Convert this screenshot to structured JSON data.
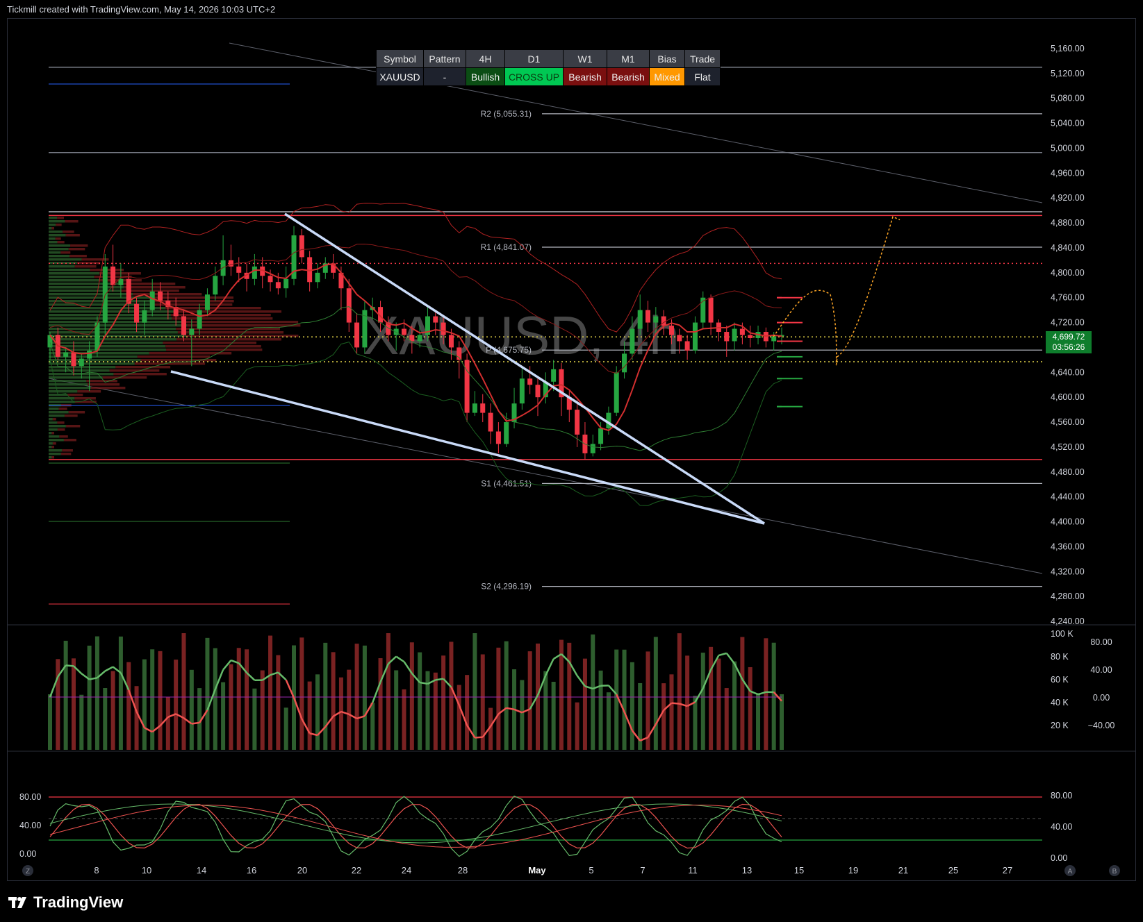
{
  "header": {
    "caption": "Tickmill created with TradingView.com, May 14, 2026 10:03 UTC+2"
  },
  "footer": {
    "brand": "TradingView",
    "logo_icon": "tradingview-logo-icon"
  },
  "watermark": "XAUUSD, 4h",
  "bias_table": {
    "headers": [
      "Symbol",
      "Pattern",
      "4H",
      "D1",
      "W1",
      "M1",
      "Bias",
      "Trade"
    ],
    "values": [
      "XAUUSD",
      "-",
      "Bullish",
      "CROSS UP",
      "Bearish",
      "Bearish",
      "Mixed",
      "Flat"
    ],
    "value_colors": [
      "#1e222d",
      "#1e222d",
      "#0b4d14",
      "#00c853",
      "#7a0f0f",
      "#7a0f0f",
      "#ff9800",
      "#1e222d"
    ]
  },
  "price_tag": {
    "price": "4,699.72",
    "countdown": "03:56:26"
  },
  "scale_buttons": {
    "left": "Z",
    "auto": "A",
    "log": "B"
  },
  "chart_data": {
    "type": "candlestick",
    "symbol": "XAUUSD",
    "timeframe": "4h",
    "price_axis": {
      "ticks": [
        "5,160.00",
        "5,120.00",
        "5,080.00",
        "5,040.00",
        "5,000.00",
        "4,960.00",
        "4,920.00",
        "4,880.00",
        "4,840.00",
        "4,800.00",
        "4,760.00",
        "4,720.00",
        "4,680.00",
        "4,640.00",
        "4,600.00",
        "4,560.00",
        "4,520.00",
        "4,480.00",
        "4,440.00",
        "4,400.00",
        "4,360.00",
        "4,320.00",
        "4,280.00",
        "4,240.00"
      ],
      "ylim": [
        4240,
        5160
      ]
    },
    "time_axis": {
      "ticks": [
        "8",
        "10",
        "14",
        "16",
        "20",
        "22",
        "24",
        "28",
        "May",
        "5",
        "7",
        "11",
        "13",
        "15",
        "19",
        "21",
        "25",
        "27"
      ]
    },
    "pivots": [
      {
        "label": "R2 (5,055.31)",
        "value": 5055.31
      },
      {
        "label": "R1 (4,841.07)",
        "value": 4841.07
      },
      {
        "label": "P (4,675.75)",
        "value": 4675.75
      },
      {
        "label": "S1 (4,461.51)",
        "value": 4461.51
      },
      {
        "label": "S2 (4,296.19)",
        "value": 4296.19
      }
    ],
    "horizontal_levels": [
      {
        "value": 5130,
        "color": "#787b86"
      },
      {
        "value": 4993,
        "color": "#787b86"
      },
      {
        "value": 4898,
        "color": "#b2b5be"
      },
      {
        "value": 4892,
        "color": "#f23645"
      },
      {
        "value": 4500,
        "color": "#f23645"
      },
      {
        "value": 4815,
        "color": "#f23645",
        "dotted": true
      },
      {
        "value": 4697,
        "color": "#e8d84a",
        "dotted": true
      },
      {
        "value": 4657,
        "color": "#e8d84a",
        "dotted": true
      }
    ],
    "last_price": 4699.72,
    "candles": [
      [
        4680,
        4700,
        4655,
        4705
      ],
      [
        4700,
        4665,
        4660,
        4712
      ],
      [
        4665,
        4672,
        4640,
        4680
      ],
      [
        4672,
        4650,
        4635,
        4690
      ],
      [
        4650,
        4662,
        4630,
        4670
      ],
      [
        4662,
        4675,
        4610,
        4690
      ],
      [
        4675,
        4720,
        4665,
        4730
      ],
      [
        4720,
        4810,
        4700,
        4830
      ],
      [
        4810,
        4780,
        4770,
        4845
      ],
      [
        4780,
        4790,
        4760,
        4815
      ],
      [
        4790,
        4750,
        4735,
        4800
      ],
      [
        4750,
        4720,
        4705,
        4760
      ],
      [
        4720,
        4740,
        4700,
        4755
      ],
      [
        4740,
        4770,
        4730,
        4790
      ],
      [
        4770,
        4755,
        4740,
        4785
      ],
      [
        4755,
        4745,
        4725,
        4770
      ],
      [
        4745,
        4730,
        4715,
        4760
      ],
      [
        4730,
        4700,
        4690,
        4740
      ],
      [
        4700,
        4710,
        4650,
        4725
      ],
      [
        4710,
        4740,
        4700,
        4750
      ],
      [
        4740,
        4765,
        4730,
        4775
      ],
      [
        4765,
        4795,
        4755,
        4810
      ],
      [
        4795,
        4820,
        4780,
        4860
      ],
      [
        4820,
        4810,
        4795,
        4845
      ],
      [
        4810,
        4800,
        4785,
        4825
      ],
      [
        4800,
        4790,
        4770,
        4815
      ],
      [
        4790,
        4810,
        4780,
        4830
      ],
      [
        4810,
        4795,
        4775,
        4825
      ],
      [
        4795,
        4785,
        4770,
        4805
      ],
      [
        4785,
        4775,
        4765,
        4800
      ],
      [
        4775,
        4790,
        4760,
        4810
      ],
      [
        4790,
        4860,
        4780,
        4875
      ],
      [
        4860,
        4825,
        4815,
        4870
      ],
      [
        4825,
        4785,
        4770,
        4835
      ],
      [
        4785,
        4800,
        4775,
        4815
      ],
      [
        4800,
        4815,
        4790,
        4825
      ],
      [
        4815,
        4800,
        4790,
        4830
      ],
      [
        4800,
        4775,
        4740,
        4810
      ],
      [
        4775,
        4720,
        4705,
        4790
      ],
      [
        4720,
        4680,
        4670,
        4735
      ],
      [
        4680,
        4740,
        4670,
        4755
      ],
      [
        4740,
        4745,
        4725,
        4760
      ],
      [
        4745,
        4720,
        4705,
        4755
      ],
      [
        4720,
        4700,
        4690,
        4730
      ],
      [
        4700,
        4710,
        4675,
        4720
      ],
      [
        4710,
        4700,
        4690,
        4725
      ],
      [
        4700,
        4690,
        4670,
        4715
      ],
      [
        4690,
        4700,
        4680,
        4715
      ],
      [
        4700,
        4730,
        4690,
        4745
      ],
      [
        4730,
        4720,
        4700,
        4740
      ],
      [
        4720,
        4700,
        4685,
        4730
      ],
      [
        4700,
        4680,
        4660,
        4710
      ],
      [
        4680,
        4660,
        4630,
        4690
      ],
      [
        4660,
        4575,
        4560,
        4670
      ],
      [
        4575,
        4590,
        4570,
        4610
      ],
      [
        4590,
        4575,
        4560,
        4605
      ],
      [
        4575,
        4545,
        4525,
        4590
      ],
      [
        4545,
        4525,
        4510,
        4560
      ],
      [
        4525,
        4560,
        4520,
        4575
      ],
      [
        4560,
        4590,
        4550,
        4615
      ],
      [
        4590,
        4630,
        4580,
        4650
      ],
      [
        4630,
        4620,
        4605,
        4650
      ],
      [
        4620,
        4600,
        4570,
        4630
      ],
      [
        4600,
        4625,
        4590,
        4640
      ],
      [
        4625,
        4645,
        4610,
        4660
      ],
      [
        4645,
        4600,
        4570,
        4655
      ],
      [
        4600,
        4580,
        4560,
        4610
      ],
      [
        4580,
        4540,
        4520,
        4595
      ],
      [
        4540,
        4510,
        4500,
        4560
      ],
      [
        4510,
        4525,
        4505,
        4540
      ],
      [
        4525,
        4550,
        4515,
        4560
      ],
      [
        4550,
        4575,
        4540,
        4585
      ],
      [
        4575,
        4640,
        4570,
        4650
      ],
      [
        4640,
        4670,
        4630,
        4690
      ],
      [
        4670,
        4710,
        4660,
        4730
      ],
      [
        4710,
        4740,
        4700,
        4765
      ],
      [
        4740,
        4720,
        4705,
        4755
      ],
      [
        4720,
        4730,
        4700,
        4745
      ],
      [
        4730,
        4715,
        4700,
        4740
      ],
      [
        4715,
        4700,
        4685,
        4725
      ],
      [
        4700,
        4690,
        4670,
        4710
      ],
      [
        4690,
        4675,
        4660,
        4700
      ],
      [
        4675,
        4720,
        4670,
        4730
      ],
      [
        4720,
        4760,
        4710,
        4770
      ],
      [
        4760,
        4720,
        4700,
        4765
      ],
      [
        4720,
        4705,
        4690,
        4725
      ],
      [
        4705,
        4690,
        4665,
        4715
      ],
      [
        4690,
        4710,
        4675,
        4720
      ],
      [
        4710,
        4700,
        4685,
        4720
      ],
      [
        4700,
        4695,
        4680,
        4715
      ],
      [
        4695,
        4705,
        4685,
        4715
      ],
      [
        4705,
        4690,
        4680,
        4712
      ],
      [
        4690,
        4698,
        4675,
        4705
      ],
      [
        4698,
        4700,
        4685,
        4712
      ]
    ],
    "forecast_path": [
      [
        4697,
        0
      ],
      [
        4760,
        1
      ],
      [
        4765,
        2
      ],
      [
        4665,
        3
      ],
      [
        4720,
        4
      ],
      [
        4890,
        5
      ],
      [
        4885,
        6
      ]
    ],
    "subpane1_axis": {
      "volume_ticks": [
        "100 K",
        "80 K",
        "60 K",
        "40 K",
        "20 K"
      ],
      "osc_ticks": [
        "80.00",
        "40.00",
        "0.00",
        "−40.00"
      ]
    },
    "subpane2_axis": {
      "left_ticks": [
        "80.00",
        "40.00",
        "0.00"
      ],
      "right_ticks": [
        "80.00",
        "40.00",
        "0.00"
      ]
    }
  }
}
